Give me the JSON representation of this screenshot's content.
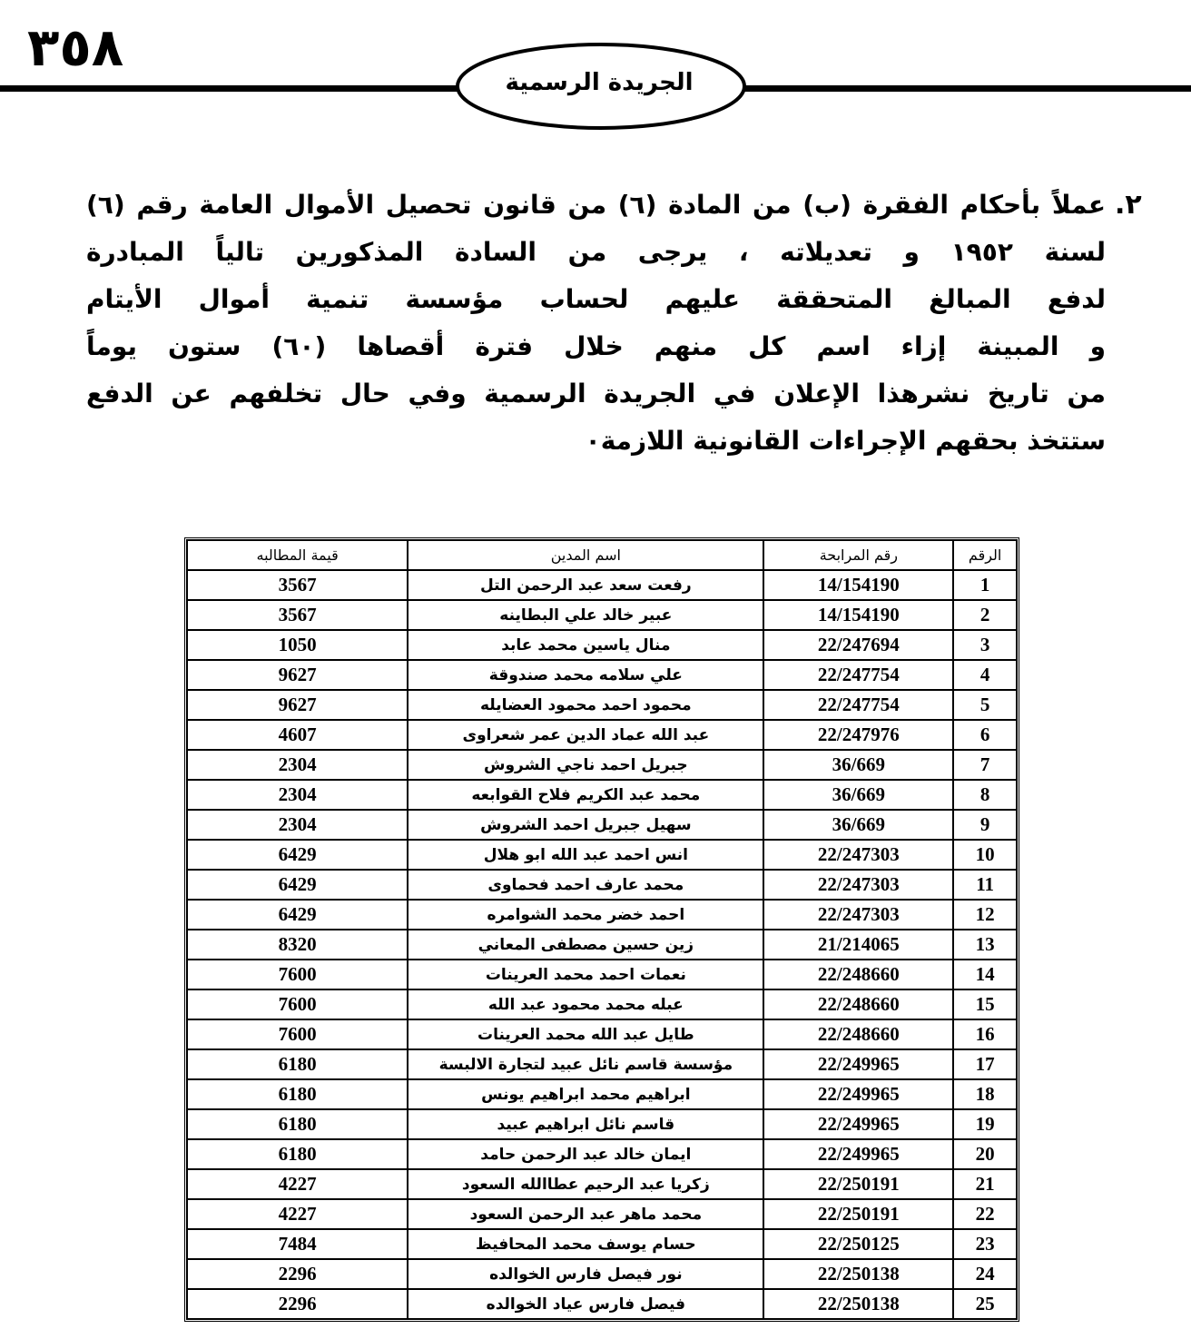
{
  "header": {
    "page_number": "٣٥٨",
    "title": "الجريدة الرسمية"
  },
  "notice": {
    "number": "٢.",
    "lines": [
      "عملاً بأحكام الفقرة (ب) من المادة (٦) من قانون تحصيل الأموال العامة رقم (٦)",
      "لسنة ١٩٥٢ و تعديلاته ، يرجى من السادة المذكورين تالياً المبادرة",
      "لدفع المبالغ المتحققة عليهم لحساب مؤسسة تنمية أموال الأيتام",
      "و المبينة إزاء اسم كل منهم خلال فترة أقصاها (٦٠) ستون يوماً",
      "من تاريخ نشرهذا الإعلان في الجريدة الرسمية وفي حال تخلفهم عن الدفع",
      "ستتخذ بحقهم الإجراءات القانونية اللازمة٠"
    ]
  },
  "table": {
    "columns": [
      "الرقم",
      "رقم المرابحة",
      "اسم المدين",
      "قيمة المطالبه"
    ],
    "rows": [
      [
        "1",
        "14/154190",
        "رفعت سعد عبد الرحمن التل",
        "3567"
      ],
      [
        "2",
        "14/154190",
        "عبير خالد علي البطاينه",
        "3567"
      ],
      [
        "3",
        "22/247694",
        "منال ياسين محمد عابد",
        "1050"
      ],
      [
        "4",
        "22/247754",
        "علي سلامه محمد صندوقة",
        "9627"
      ],
      [
        "5",
        "22/247754",
        "محمود احمد محمود العضايله",
        "9627"
      ],
      [
        "6",
        "22/247976",
        "عبد الله عماد الدين عمر شعراوى",
        "4607"
      ],
      [
        "7",
        "36/669",
        "جبريل احمد ناجي الشروش",
        "2304"
      ],
      [
        "8",
        "36/669",
        "محمد عبد الكريم فلاح القوابعه",
        "2304"
      ],
      [
        "9",
        "36/669",
        "سهيل جبريل احمد الشروش",
        "2304"
      ],
      [
        "10",
        "22/247303",
        "انس احمد عبد الله ابو هلال",
        "6429"
      ],
      [
        "11",
        "22/247303",
        "محمد عارف احمد فحماوى",
        "6429"
      ],
      [
        "12",
        "22/247303",
        "احمد خضر محمد الشوامره",
        "6429"
      ],
      [
        "13",
        "21/214065",
        "زين حسين مصطفى المعاني",
        "8320"
      ],
      [
        "14",
        "22/248660",
        "نعمات احمد محمد العرينات",
        "7600"
      ],
      [
        "15",
        "22/248660",
        "عبله محمد محمود عبد الله",
        "7600"
      ],
      [
        "16",
        "22/248660",
        "طايل عبد الله محمد العرينات",
        "7600"
      ],
      [
        "17",
        "22/249965",
        "مؤسسة قاسم نائل عبيد لتجارة الالبسة",
        "6180"
      ],
      [
        "18",
        "22/249965",
        "ابراهيم محمد ابراهيم يونس",
        "6180"
      ],
      [
        "19",
        "22/249965",
        "قاسم نائل ابراهيم عبيد",
        "6180"
      ],
      [
        "20",
        "22/249965",
        "ايمان خالد عبد الرحمن حامد",
        "6180"
      ],
      [
        "21",
        "22/250191",
        "زكريا عبد الرحيم عطاالله السعود",
        "4227"
      ],
      [
        "22",
        "22/250191",
        "محمد ماهر عبد الرحمن السعود",
        "4227"
      ],
      [
        "23",
        "22/250125",
        "حسام يوسف محمد المحافيظ",
        "7484"
      ],
      [
        "24",
        "22/250138",
        "نور فيصل فارس الخوالده",
        "2296"
      ],
      [
        "25",
        "22/250138",
        "فيصل فارس عياد الخوالده",
        "2296"
      ]
    ]
  }
}
